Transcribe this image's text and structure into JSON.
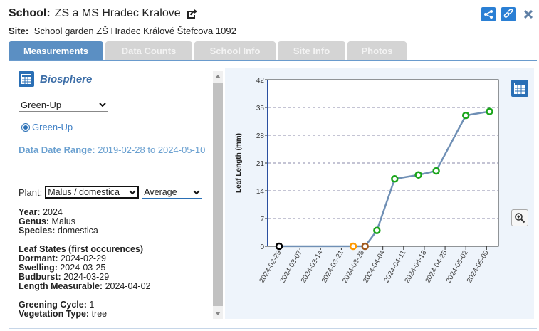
{
  "header": {
    "school_label": "School:",
    "school_name": "ZS a MS Hradec Kralove",
    "site_label": "Site:",
    "site_name": "School garden ZŠ Hradec Králové Štefcova 1092"
  },
  "tabs": [
    {
      "label": "Measurements",
      "active": true
    },
    {
      "label": "Data Counts",
      "active": false
    },
    {
      "label": "School Info",
      "active": false
    },
    {
      "label": "Site Info",
      "active": false
    },
    {
      "label": "Photos",
      "active": false
    }
  ],
  "left": {
    "title": "Biosphere",
    "protocol_select": "Green-Up",
    "radio_label": "Green-Up",
    "range_label": "Data Date Range:",
    "range_value": "2019-02-28 to 2024-05-10",
    "plant_label": "Plant:",
    "plant_value": "Malus / domestica",
    "average_value": "Average",
    "year_label": "Year:",
    "year": "2024",
    "genus_label": "Genus:",
    "genus": "Malus",
    "species_label": "Species:",
    "species": "domestica",
    "states_title": "Leaf States (first occurences)",
    "dormant_label": "Dormant:",
    "dormant": "2024-02-29",
    "swelling_label": "Swelling:",
    "swelling": "2024-03-25",
    "budburst_label": "Budburst:",
    "budburst": "2024-03-29",
    "length_label": "Length Measurable:",
    "length": "2024-04-02",
    "greening_label": "Greening Cycle:",
    "greening": "1",
    "vegetation_label": "Vegetation Type:",
    "vegetation": "tree"
  },
  "colors": {
    "accent": "#2a6fb5",
    "tab_active": "#5b8fc3",
    "tab_inactive": "#d4d4d4",
    "line": "#6f8fb5",
    "point_green": "#1aa51a",
    "point_black": "#000000",
    "point_orange": "#ff9900",
    "point_brown": "#a0581c"
  },
  "icons": [
    "external-link-icon",
    "share-icon",
    "link-icon",
    "close-icon",
    "table-icon",
    "zoom-icon",
    "chevron-down-icon"
  ],
  "chart_data": {
    "type": "line",
    "title": "",
    "xlabel": "",
    "ylabel": "Leaf Length (mm)",
    "ylim": [
      0,
      42
    ],
    "yticks": [
      0,
      7,
      14,
      21,
      28,
      35,
      42
    ],
    "grid": "horizontal dashed",
    "xticks": [
      "2024-02-29",
      "2024-03-07",
      "2024-03-14",
      "2024-03-21",
      "2024-03-28",
      "2024-04-04",
      "2024-04-11",
      "2024-04-18",
      "2024-04-25",
      "2024-05-02",
      "2024-05-09"
    ],
    "xlim": [
      "2024-02-29",
      "2024-05-13"
    ],
    "points": [
      {
        "x": "2024-02-29",
        "y": 0,
        "color": "#000000"
      },
      {
        "x": "2024-03-25",
        "y": 0,
        "color": "#ff9900"
      },
      {
        "x": "2024-03-29",
        "y": 0,
        "color": "#a0581c"
      },
      {
        "x": "2024-04-02",
        "y": 4,
        "color": "#1aa51a"
      },
      {
        "x": "2024-04-08",
        "y": 17,
        "color": "#1aa51a"
      },
      {
        "x": "2024-04-16",
        "y": 18,
        "color": "#1aa51a"
      },
      {
        "x": "2024-04-22",
        "y": 19,
        "color": "#1aa51a"
      },
      {
        "x": "2024-05-02",
        "y": 33,
        "color": "#1aa51a"
      },
      {
        "x": "2024-05-10",
        "y": 34,
        "color": "#1aa51a"
      }
    ]
  }
}
